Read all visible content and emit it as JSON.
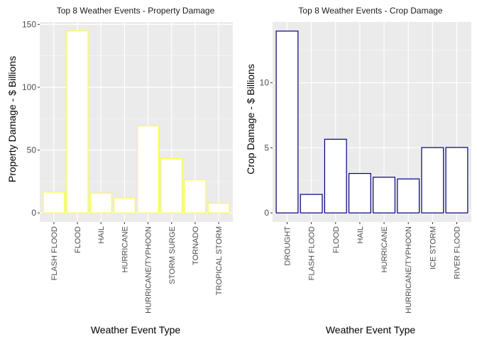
{
  "chart_data": [
    {
      "type": "bar",
      "title": "Top 8 Weather Events - Property Damage",
      "xlabel": "Weather Event Type",
      "ylabel": "Property Damage - $ Billions",
      "categories": [
        "FLASH FLOOD",
        "FLOOD",
        "HAIL",
        "HURRICANE",
        "HURRICANE/TYPHOON",
        "STORM SURGE",
        "TORNADO",
        "TROPICAL STORM"
      ],
      "values": [
        16.6,
        144.7,
        15.7,
        11.9,
        69.3,
        43.3,
        26.3,
        7.7
      ],
      "ylim": [
        -7.2,
        151.9
      ],
      "yticks": [
        0,
        50,
        100,
        150
      ],
      "bar_outline_color": "#ffff33",
      "bar_fill_color": "#ffffff",
      "panel_color": "#ebebeb",
      "grid": true,
      "legend": "none"
    },
    {
      "type": "bar",
      "title": "Top 8 Weather Events - Crop Damage",
      "xlabel": "Weather Event Type",
      "ylabel": "Crop Damage - $ Billions",
      "categories": [
        "DROUGHT",
        "FLASH FLOOD",
        "FLOOD",
        "HAIL",
        "HURRICANE",
        "HURRICANE/TYPHOON",
        "ICE STORM",
        "RIVER FLOOD"
      ],
      "values": [
        13.97,
        1.42,
        5.66,
        3.03,
        2.74,
        2.61,
        5.02,
        5.03
      ],
      "ylim": [
        -0.7,
        14.67
      ],
      "yticks": [
        0,
        5,
        10
      ],
      "bar_outline_color": "#000080",
      "bar_fill_color": "#ffffff",
      "panel_color": "#ebebeb",
      "grid": true,
      "legend": "none"
    }
  ]
}
